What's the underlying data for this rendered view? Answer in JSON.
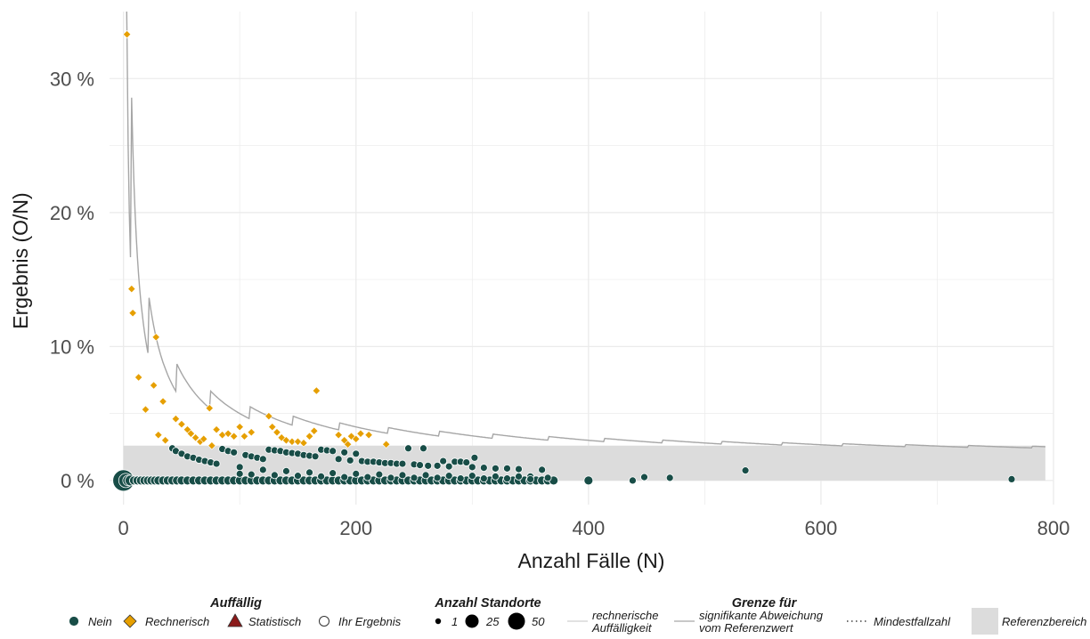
{
  "colors": {
    "nein": "#184d47",
    "rechnerisch": "#e69f00",
    "statistisch": "#8b1a1a",
    "ihr_ergebnis_fill": "#ffffff",
    "boundary_line": "#a6a6a6",
    "reference_band": "#dcdcdc",
    "grid": "#ebebeb"
  },
  "chart_data": {
    "type": "scatter",
    "xlabel": "Anzahl Fälle (N)",
    "ylabel": "Ergebnis (O/N)",
    "xlim": [
      -12,
      800
    ],
    "ylim": [
      -1.8,
      35
    ],
    "x_ticks": [
      0,
      200,
      400,
      600,
      800
    ],
    "y_ticks": [
      0,
      10,
      20,
      30
    ],
    "y_tick_labels": [
      "0 %",
      "10 %",
      "20 %",
      "30 %"
    ],
    "grid": true,
    "legend_position": "bottom",
    "reference_band": {
      "from": 0,
      "to": 2.6,
      "x_from": 0,
      "x_to": 793
    },
    "boundary_line": {
      "name": "signifikante Abweichung vom Referenzwert",
      "x_from": 2,
      "x_to": 793,
      "formula": "binomial upper limit",
      "p": 0.0125,
      "alpha": 0.0025
    },
    "series": [
      {
        "name": "Nein",
        "marker": "circle",
        "points": [
          [
            0,
            0,
            12
          ],
          [
            2,
            0,
            8
          ],
          [
            4,
            0,
            6
          ],
          [
            6,
            0,
            6
          ],
          [
            9,
            0,
            5
          ],
          [
            12,
            0,
            5
          ],
          [
            15,
            0,
            5
          ],
          [
            18,
            0,
            5
          ],
          [
            21,
            0,
            5
          ],
          [
            24,
            0,
            5
          ],
          [
            27,
            0,
            5
          ],
          [
            30,
            0,
            5
          ],
          [
            34,
            0,
            5
          ],
          [
            38,
            0,
            5
          ],
          [
            42,
            0,
            5
          ],
          [
            46,
            0,
            5
          ],
          [
            50,
            0,
            5
          ],
          [
            55,
            0,
            5
          ],
          [
            60,
            0,
            5
          ],
          [
            65,
            0,
            5
          ],
          [
            70,
            0,
            5
          ],
          [
            75,
            0,
            5
          ],
          [
            80,
            0,
            5
          ],
          [
            85,
            0,
            5
          ],
          [
            90,
            0,
            5
          ],
          [
            95,
            0,
            5
          ],
          [
            100,
            0,
            5
          ],
          [
            105,
            0,
            5
          ],
          [
            110,
            0,
            5
          ],
          [
            115,
            0,
            5
          ],
          [
            120,
            0,
            5
          ],
          [
            125,
            0,
            5
          ],
          [
            130,
            0,
            5
          ],
          [
            135,
            0,
            5
          ],
          [
            140,
            0,
            5
          ],
          [
            145,
            0,
            5
          ],
          [
            150,
            0,
            5
          ],
          [
            155,
            0,
            5
          ],
          [
            160,
            0,
            5
          ],
          [
            165,
            0,
            5
          ],
          [
            170,
            0,
            5
          ],
          [
            175,
            0,
            5
          ],
          [
            180,
            0,
            5
          ],
          [
            185,
            0,
            5
          ],
          [
            190,
            0,
            5
          ],
          [
            195,
            0,
            5
          ],
          [
            200,
            0,
            5
          ],
          [
            205,
            0,
            5
          ],
          [
            210,
            0,
            5
          ],
          [
            215,
            0,
            5
          ],
          [
            220,
            0,
            5
          ],
          [
            225,
            0,
            5
          ],
          [
            230,
            0,
            5
          ],
          [
            235,
            0,
            5
          ],
          [
            240,
            0,
            5
          ],
          [
            245,
            0,
            5
          ],
          [
            250,
            0,
            5
          ],
          [
            255,
            0,
            5
          ],
          [
            260,
            0,
            5
          ],
          [
            265,
            0,
            5
          ],
          [
            270,
            0,
            5
          ],
          [
            275,
            0,
            5
          ],
          [
            280,
            0,
            5
          ],
          [
            285,
            0,
            5
          ],
          [
            290,
            0,
            5
          ],
          [
            295,
            0,
            5
          ],
          [
            300,
            0,
            5
          ],
          [
            305,
            0,
            5
          ],
          [
            310,
            0,
            5
          ],
          [
            315,
            0,
            5
          ],
          [
            320,
            0,
            5
          ],
          [
            325,
            0,
            5
          ],
          [
            330,
            0,
            5
          ],
          [
            335,
            0,
            5
          ],
          [
            340,
            0,
            5
          ],
          [
            345,
            0,
            5
          ],
          [
            350,
            0,
            5
          ],
          [
            355,
            0,
            5
          ],
          [
            360,
            0,
            5
          ],
          [
            365,
            0,
            5
          ],
          [
            370,
            0,
            5
          ],
          [
            400,
            0,
            5
          ],
          [
            438,
            0,
            4
          ],
          [
            764,
            0.1,
            4
          ],
          [
            42,
            2.4,
            4
          ],
          [
            45,
            2.2,
            4
          ],
          [
            50,
            2.0,
            4
          ],
          [
            55,
            1.8,
            4
          ],
          [
            60,
            1.7,
            4
          ],
          [
            65,
            1.55,
            4
          ],
          [
            70,
            1.45,
            4
          ],
          [
            75,
            1.35,
            4
          ],
          [
            80,
            1.25,
            4
          ],
          [
            85,
            2.35,
            4
          ],
          [
            90,
            2.2,
            4
          ],
          [
            95,
            2.1,
            4
          ],
          [
            100,
            1.0,
            4
          ],
          [
            105,
            1.9,
            4
          ],
          [
            110,
            1.8,
            4
          ],
          [
            115,
            1.7,
            4
          ],
          [
            120,
            1.6,
            4
          ],
          [
            125,
            2.3,
            4
          ],
          [
            130,
            2.25,
            4
          ],
          [
            135,
            2.2,
            4
          ],
          [
            140,
            2.1,
            4
          ],
          [
            145,
            2.05,
            4
          ],
          [
            150,
            2.0,
            4
          ],
          [
            155,
            1.9,
            4
          ],
          [
            160,
            1.85,
            4
          ],
          [
            165,
            1.8,
            4
          ],
          [
            170,
            2.3,
            4
          ],
          [
            175,
            2.25,
            4
          ],
          [
            180,
            2.2,
            4
          ],
          [
            185,
            1.6,
            4
          ],
          [
            190,
            2.1,
            4
          ],
          [
            195,
            1.5,
            4
          ],
          [
            200,
            2.0,
            4
          ],
          [
            205,
            1.45,
            4
          ],
          [
            210,
            1.4,
            4
          ],
          [
            215,
            1.4,
            4
          ],
          [
            220,
            1.35,
            4
          ],
          [
            225,
            1.3,
            4
          ],
          [
            230,
            1.3,
            4
          ],
          [
            235,
            1.25,
            4
          ],
          [
            240,
            1.25,
            4
          ],
          [
            245,
            2.4,
            4
          ],
          [
            250,
            1.2,
            4
          ],
          [
            255,
            1.15,
            4
          ],
          [
            258,
            2.4,
            4
          ],
          [
            262,
            1.1,
            4
          ],
          [
            270,
            1.1,
            4
          ],
          [
            275,
            1.45,
            4
          ],
          [
            280,
            1.05,
            4
          ],
          [
            285,
            1.4,
            4
          ],
          [
            290,
            1.4,
            4
          ],
          [
            295,
            1.35,
            4
          ],
          [
            300,
            1.0,
            4
          ],
          [
            302,
            1.7,
            4
          ],
          [
            310,
            0.95,
            4
          ],
          [
            320,
            0.9,
            4
          ],
          [
            330,
            0.9,
            4
          ],
          [
            340,
            0.85,
            4
          ],
          [
            350,
            0.3,
            4
          ],
          [
            360,
            0.8,
            4
          ],
          [
            365,
            0.2,
            4
          ],
          [
            100,
            0.5,
            4
          ],
          [
            110,
            0.45,
            4
          ],
          [
            120,
            0.8,
            4
          ],
          [
            130,
            0.4,
            4
          ],
          [
            140,
            0.7,
            4
          ],
          [
            150,
            0.35,
            4
          ],
          [
            160,
            0.6,
            4
          ],
          [
            170,
            0.3,
            4
          ],
          [
            180,
            0.55,
            4
          ],
          [
            190,
            0.25,
            4
          ],
          [
            200,
            0.5,
            4
          ],
          [
            210,
            0.25,
            4
          ],
          [
            220,
            0.45,
            4
          ],
          [
            230,
            0.2,
            4
          ],
          [
            240,
            0.4,
            4
          ],
          [
            250,
            0.2,
            4
          ],
          [
            260,
            0.4,
            4
          ],
          [
            270,
            0.2,
            4
          ],
          [
            280,
            0.35,
            4
          ],
          [
            290,
            0.15,
            4
          ],
          [
            300,
            0.35,
            4
          ],
          [
            310,
            0.15,
            4
          ],
          [
            320,
            0.3,
            4
          ],
          [
            330,
            0.15,
            4
          ],
          [
            340,
            0.3,
            4
          ],
          [
            350,
            0.1,
            4
          ],
          [
            448,
            0.25,
            4
          ],
          [
            470,
            0.2,
            4
          ],
          [
            535,
            0.75,
            4
          ]
        ]
      },
      {
        "name": "Rechnerisch",
        "marker": "diamond",
        "points": [
          [
            3,
            33.3
          ],
          [
            7,
            14.3
          ],
          [
            8,
            12.5
          ],
          [
            13,
            7.7
          ],
          [
            19,
            5.3
          ],
          [
            26,
            7.1
          ],
          [
            28,
            10.7
          ],
          [
            30,
            3.4
          ],
          [
            34,
            5.9
          ],
          [
            36,
            3.0
          ],
          [
            45,
            4.6
          ],
          [
            50,
            4.2
          ],
          [
            55,
            3.8
          ],
          [
            58,
            3.5
          ],
          [
            62,
            3.2
          ],
          [
            66,
            2.9
          ],
          [
            69,
            3.1
          ],
          [
            74,
            5.4
          ],
          [
            76,
            2.6
          ],
          [
            80,
            3.8
          ],
          [
            85,
            3.4
          ],
          [
            90,
            3.5
          ],
          [
            95,
            3.3
          ],
          [
            100,
            4.0
          ],
          [
            104,
            3.3
          ],
          [
            110,
            3.6
          ],
          [
            125,
            4.8
          ],
          [
            128,
            4.0
          ],
          [
            132,
            3.6
          ],
          [
            136,
            3.2
          ],
          [
            140,
            3.0
          ],
          [
            145,
            2.9
          ],
          [
            150,
            2.9
          ],
          [
            155,
            2.8
          ],
          [
            160,
            3.3
          ],
          [
            164,
            3.7
          ],
          [
            166,
            6.7
          ],
          [
            185,
            3.4
          ],
          [
            190,
            3.0
          ],
          [
            193,
            2.7
          ],
          [
            196,
            3.3
          ],
          [
            200,
            3.1
          ],
          [
            204,
            3.5
          ],
          [
            226,
            2.7
          ],
          [
            211,
            3.4
          ]
        ]
      }
    ]
  },
  "legend": {
    "groups": [
      {
        "title": "Auffällig",
        "items": [
          {
            "label": "Nein",
            "icon": "circle"
          },
          {
            "label": "Rechnerisch",
            "icon": "diamond"
          },
          {
            "label": "Statistisch",
            "icon": "triangle"
          },
          {
            "label": "Ihr Ergebnis",
            "icon": "circle-open"
          }
        ]
      },
      {
        "title": "Anzahl Standorte",
        "items": [
          {
            "label": "1",
            "size": 1
          },
          {
            "label": "25",
            "size": 25
          },
          {
            "label": "50",
            "size": 50
          }
        ]
      },
      {
        "title": "Grenze für",
        "items": [
          {
            "label": "rechnerische Auffälligkeit",
            "icon": "line-light"
          },
          {
            "label": "signifikante Abweichung vom Referenzwert",
            "icon": "line-solid"
          },
          {
            "label": "Mindestfallzahl",
            "icon": "line-dotted"
          },
          {
            "label": "Referenzbereich",
            "icon": "band"
          }
        ]
      }
    ]
  }
}
